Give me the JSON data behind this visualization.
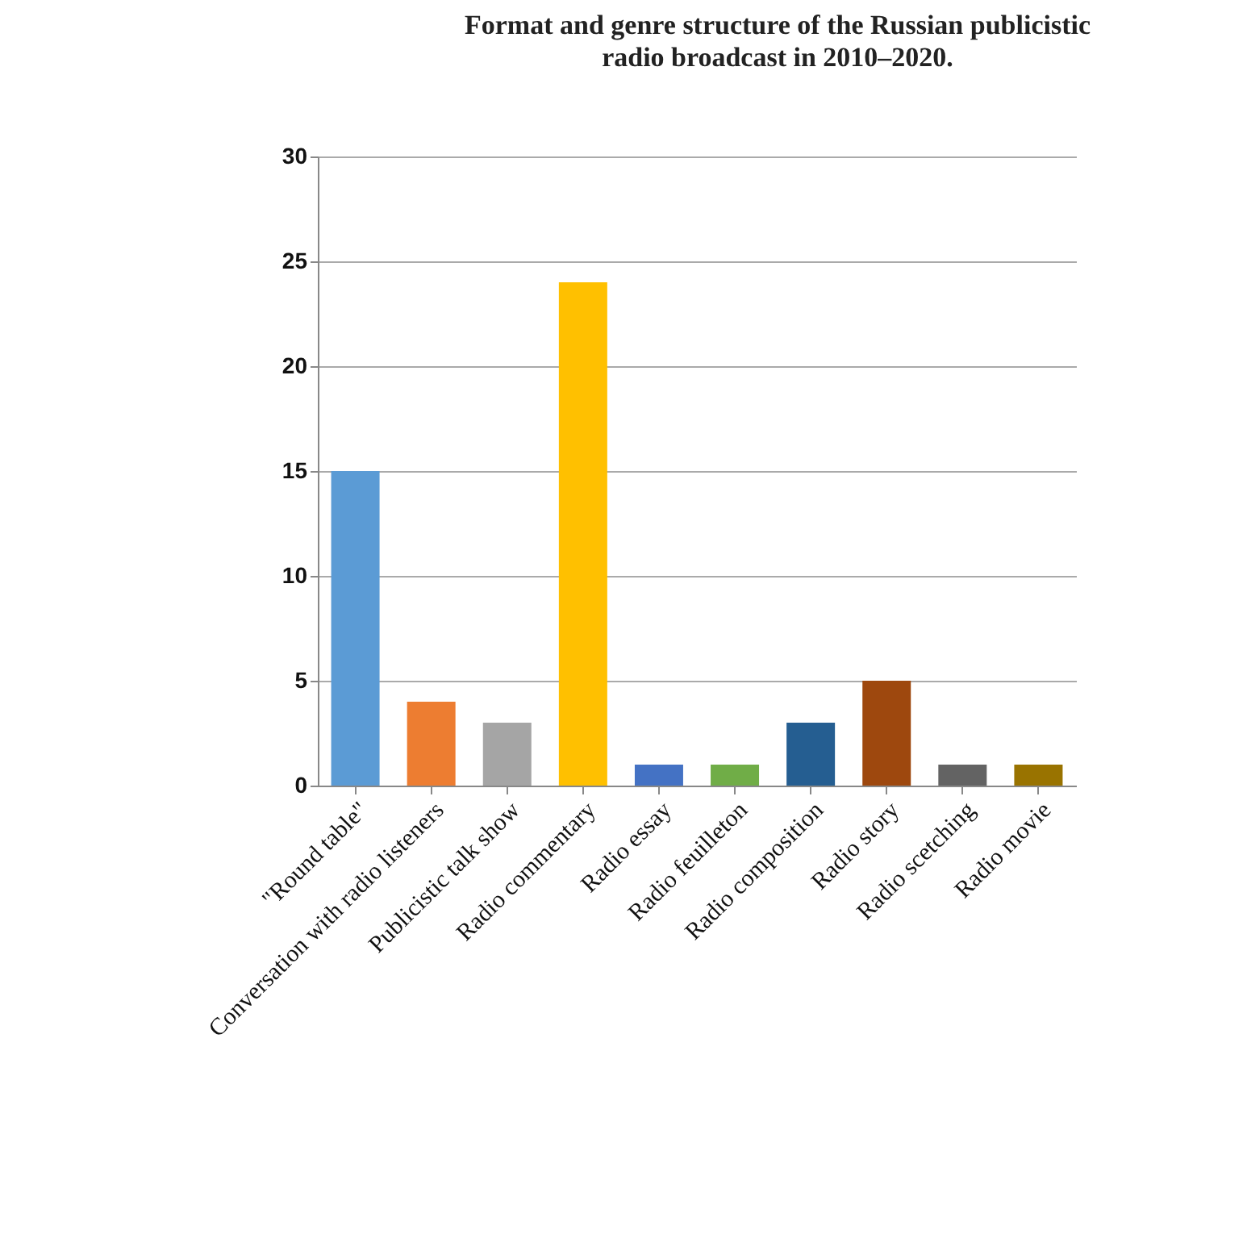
{
  "chart_data": {
    "type": "bar",
    "title": "Format and genre structure of the Russian publicistic radio broadcast in 2010–2020.",
    "categories": [
      "\"Round table\"",
      "Conversation with radio listeners",
      "Publicistic talk show",
      "Radio commentary",
      "Radio essay",
      "Radio feuilleton",
      "Radio composition",
      "Radio story",
      "Radio scetching",
      "Radio movie"
    ],
    "values": [
      15,
      4,
      3,
      24,
      1,
      1,
      3,
      5,
      1,
      1
    ],
    "colors": [
      "#5b9bd5",
      "#ed7d31",
      "#a5a5a5",
      "#ffc000",
      "#4472c4",
      "#70ad47",
      "#255e91",
      "#9e480e",
      "#636363",
      "#997300"
    ],
    "ylim": [
      0,
      30
    ],
    "yticks": [
      0,
      5,
      10,
      15,
      20,
      25,
      30
    ],
    "grid": "y",
    "legend": false
  }
}
